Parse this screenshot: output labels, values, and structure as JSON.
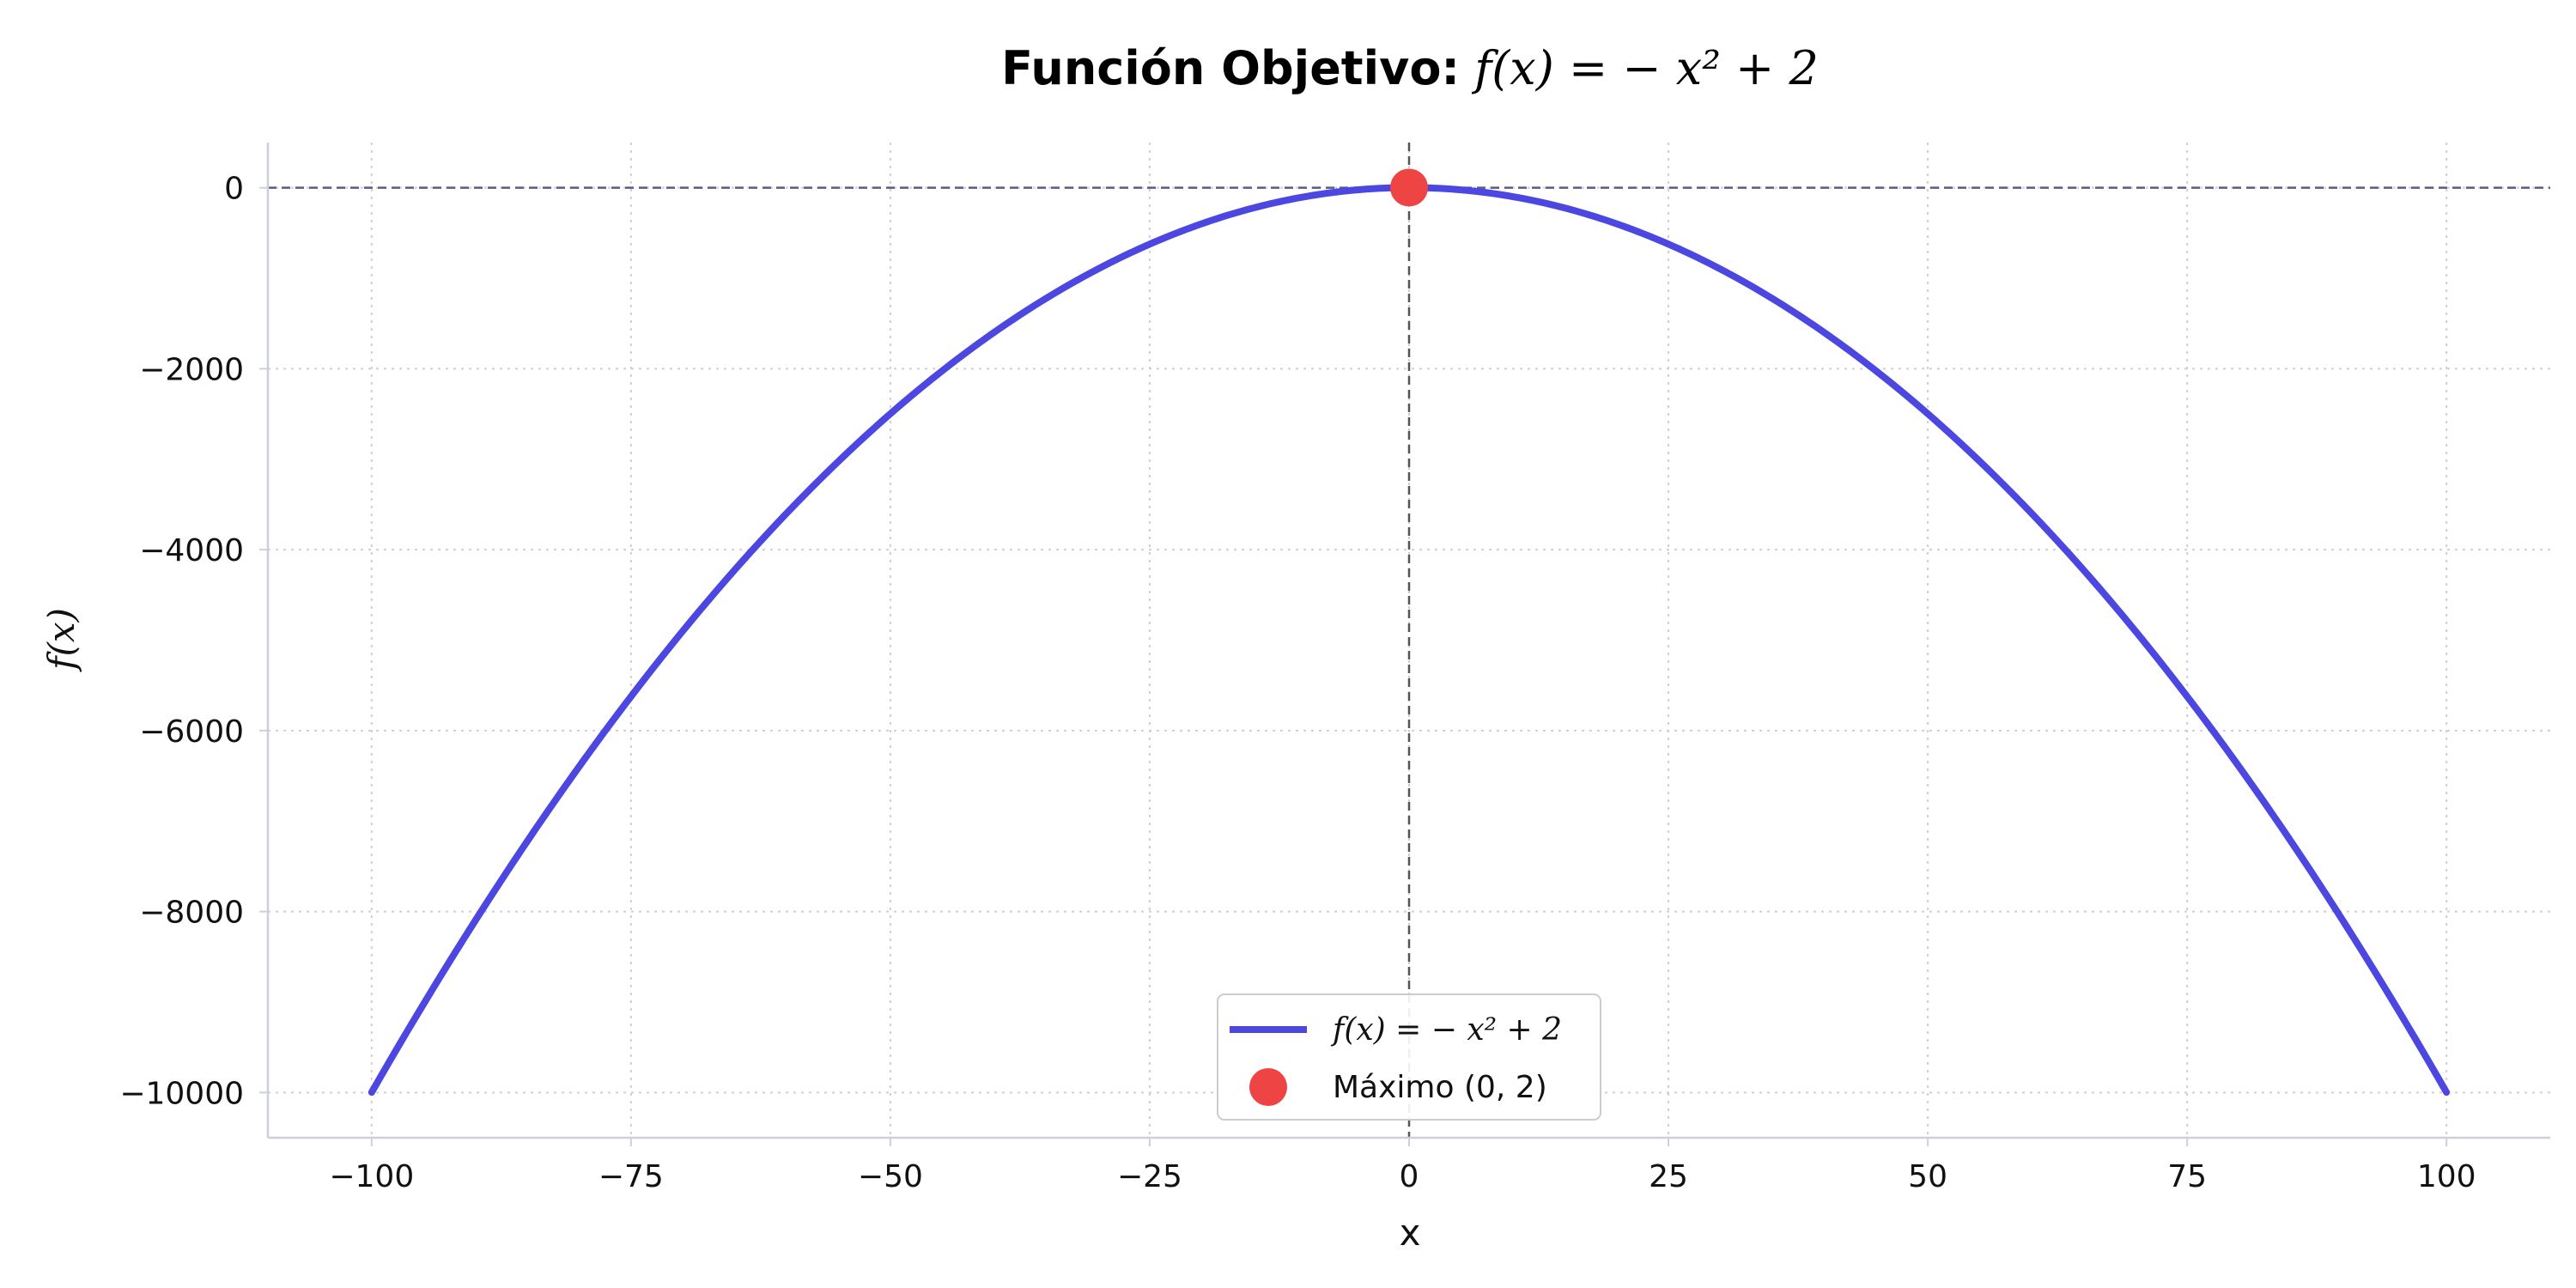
{
  "chart_data": {
    "type": "line",
    "title": {
      "bold": "Función Objetivo:",
      "math": "f(x) = − x² + 2"
    },
    "xlabel": "x",
    "ylabel": "f(x)",
    "xlim": [
      -110,
      110
    ],
    "ylim": [
      -10500,
      500
    ],
    "xticks": [
      -100,
      -75,
      -50,
      -25,
      0,
      25,
      50,
      75,
      100
    ],
    "xtick_labels": [
      "−100",
      "−75",
      "−50",
      "−25",
      "0",
      "25",
      "50",
      "75",
      "100"
    ],
    "yticks": [
      0,
      -2000,
      -4000,
      -6000,
      -8000,
      -10000
    ],
    "ytick_labels": [
      "0",
      "−2000",
      "−4000",
      "−6000",
      "−8000",
      "−10000"
    ],
    "grid": true,
    "legend_placement": "lower center",
    "series": [
      {
        "name": "f(x) = − x² + 2",
        "kind": "line",
        "function": "-x^2 + 2",
        "x_range": [
          -100,
          100
        ],
        "color": "#4b47e0"
      },
      {
        "name": "Máximo (0, 2)",
        "kind": "scatter",
        "points": [
          {
            "x": 0,
            "y": 2
          }
        ],
        "color": "#ef4444"
      }
    ],
    "reference_lines": [
      {
        "orientation": "horizontal",
        "value": 0,
        "color": "#5a5a8a",
        "style": "dashed"
      },
      {
        "orientation": "vertical",
        "value": 0,
        "color": "#555555",
        "style": "dashed"
      }
    ]
  }
}
